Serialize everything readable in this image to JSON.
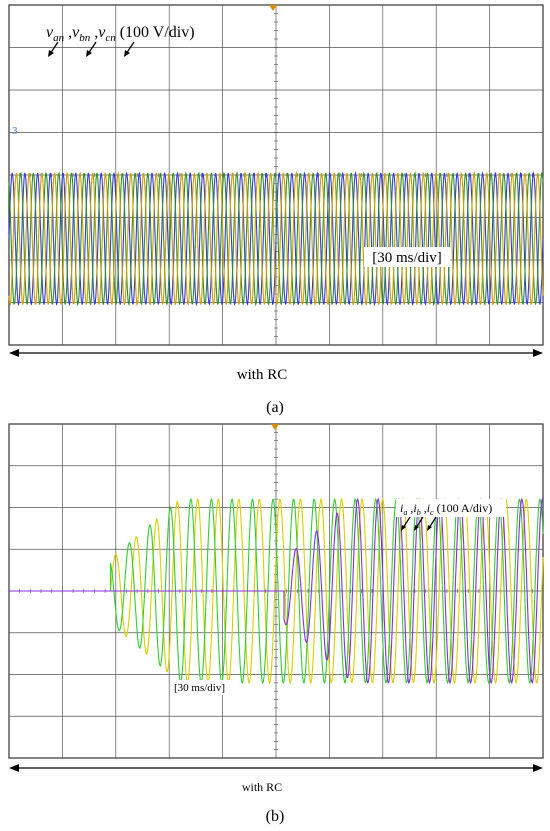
{
  "chart_data": [
    {
      "type": "line",
      "panel_label": "(a)",
      "trace_label_parts": [
        {
          "base": "v",
          "sub": "an",
          "sep": " ,"
        },
        {
          "base": "v",
          "sub": "bn",
          "sep": " ,"
        },
        {
          "base": "v",
          "sub": "cn",
          "sep": ""
        }
      ],
      "scale_label": "(100 V/div)",
      "time_label": "[30 ms/div]",
      "span_label": "with RC",
      "channel_marker": "3",
      "grid_divisions": {
        "x": 10,
        "y": 8
      },
      "series": [
        {
          "color": "#3a3ad6",
          "amplitude_div": 1.55,
          "phase_deg": 0
        },
        {
          "color": "#2f8f2f",
          "amplitude_div": 1.55,
          "phase_deg": 120
        },
        {
          "color": "#c9a000",
          "amplitude_div": 1.55,
          "phase_deg": 240
        }
      ],
      "waveform": {
        "periods_per_div": 4.2,
        "offset_div": 5.5,
        "span_div": [
          0,
          10
        ]
      }
    },
    {
      "type": "line",
      "panel_label": "(b)",
      "trace_label_parts": [
        {
          "base": "i",
          "sub": "a",
          "sep": " ,"
        },
        {
          "base": "i",
          "sub": "b",
          "sep": " ,"
        },
        {
          "base": "i",
          "sub": "c",
          "sep": ""
        }
      ],
      "scale_label": "(100 A/div)",
      "time_label": "[30 ms/div]",
      "span_label": "with RC",
      "grid_divisions": {
        "x": 10,
        "y": 8
      },
      "series": [
        {
          "color": "#d8d000",
          "amplitude_div": 2.2,
          "phase_deg": 0,
          "start_div": 1.9
        },
        {
          "color": "#33cc33",
          "amplitude_div": 2.2,
          "phase_deg": 120,
          "start_div": 1.9
        },
        {
          "color": "#8a2be2",
          "amplitude_div": 2.2,
          "phase_deg": 240,
          "start_div": 5.15
        }
      ],
      "waveform": {
        "periods_per_div": 2.6,
        "offset_div": 4.0,
        "span_div": [
          0,
          10
        ]
      }
    }
  ],
  "colors": {
    "grid": "#555555",
    "frame": "#333333",
    "arrow": "#000000",
    "trigger_marker": "#d88a00"
  }
}
